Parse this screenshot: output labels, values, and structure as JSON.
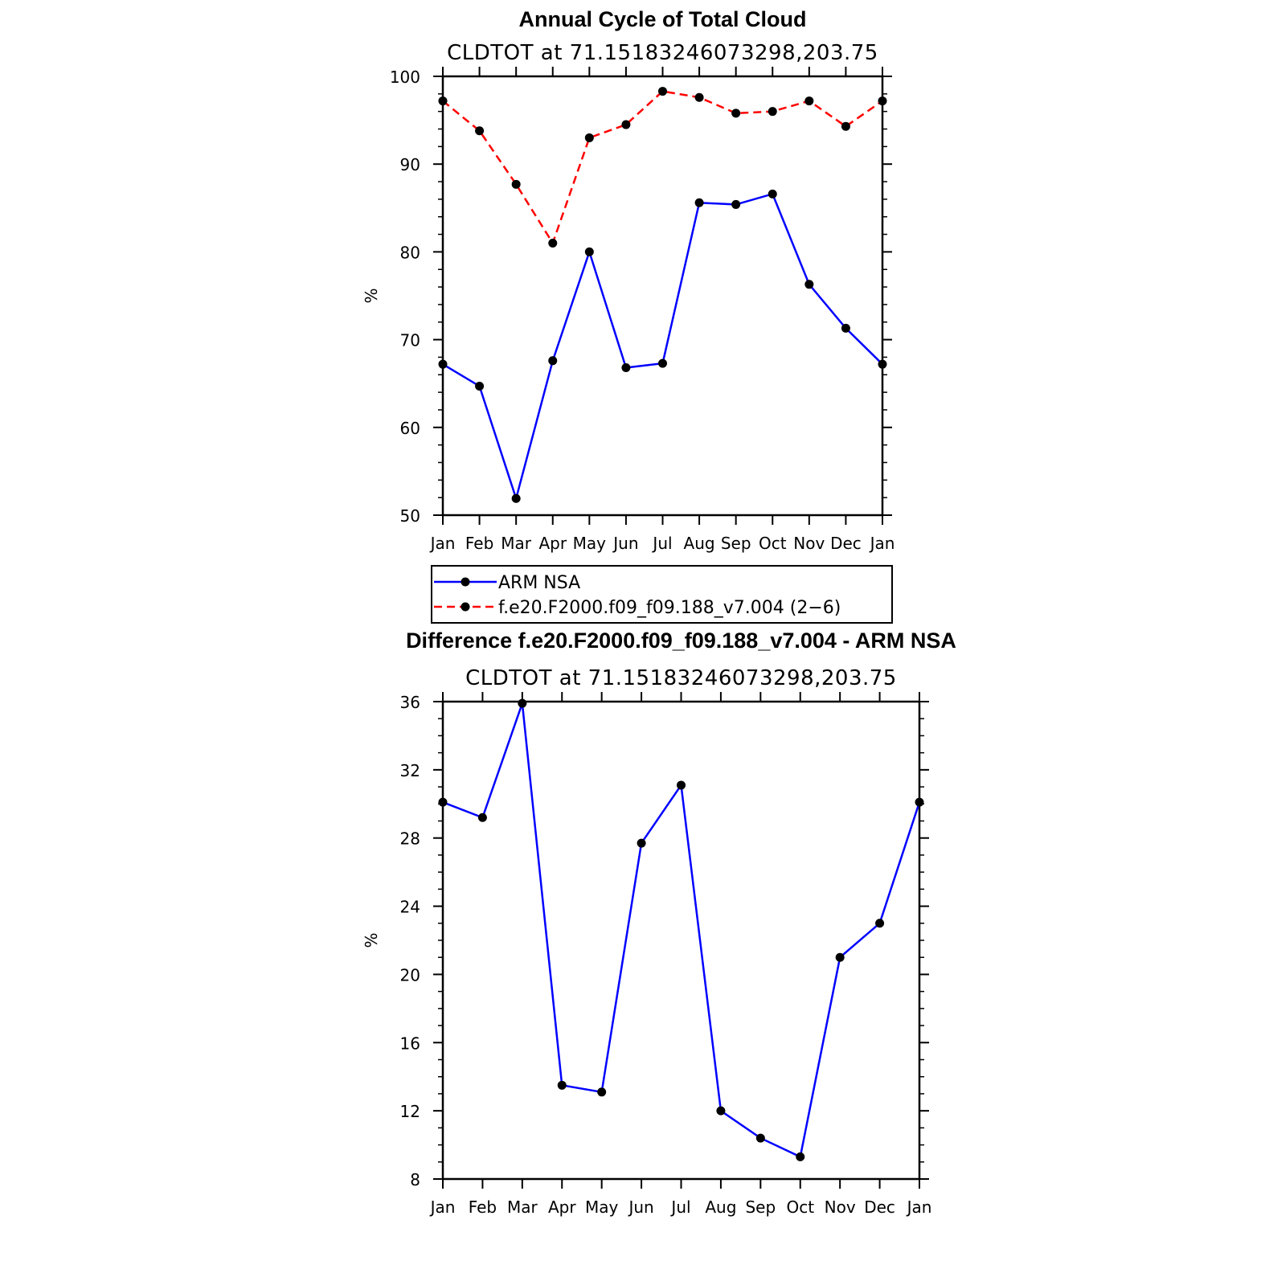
{
  "chart_data": [
    {
      "type": "line",
      "title": "Annual Cycle of Total Cloud",
      "subtitle": "CLDTOT at 71.15183246073298,203.75",
      "ylabel": "%",
      "xlabel": "",
      "ylim": [
        50,
        100
      ],
      "yticks": [
        "50",
        "60",
        "70",
        "80",
        "90",
        "100"
      ],
      "yticks_values": [
        50,
        60,
        70,
        80,
        90,
        100
      ],
      "categories": [
        "Jan",
        "Feb",
        "Mar",
        "Apr",
        "May",
        "Jun",
        "Jul",
        "Aug",
        "Sep",
        "Oct",
        "Nov",
        "Dec",
        "Jan"
      ],
      "series": [
        {
          "name": "ARM NSA",
          "color": "#0000ff",
          "dash": "solid",
          "values": [
            67.2,
            64.7,
            51.9,
            67.6,
            80.0,
            66.8,
            67.3,
            85.6,
            85.4,
            86.6,
            76.3,
            71.3,
            67.2
          ]
        },
        {
          "name": "f.e20.F2000.f09_f09.188_v7.004 (2−6)",
          "color": "#ff0000",
          "dash": "dashed",
          "values": [
            97.2,
            93.8,
            87.7,
            81.0,
            93.0,
            94.5,
            98.3,
            97.6,
            95.8,
            96.0,
            97.2,
            94.3,
            97.2
          ]
        }
      ]
    },
    {
      "type": "line",
      "title": "Difference f.e20.F2000.f09_f09.188_v7.004 - ARM NSA",
      "subtitle": "CLDTOT at 71.15183246073298,203.75",
      "ylabel": "%",
      "xlabel": "",
      "ylim": [
        8,
        36
      ],
      "yticks": [
        "8",
        "12",
        "16",
        "20",
        "24",
        "28",
        "32",
        "36"
      ],
      "yticks_values": [
        8,
        12,
        16,
        20,
        24,
        28,
        32,
        36
      ],
      "categories": [
        "Jan",
        "Feb",
        "Mar",
        "Apr",
        "May",
        "Jun",
        "Jul",
        "Aug",
        "Sep",
        "Oct",
        "Nov",
        "Dec",
        "Jan"
      ],
      "series": [
        {
          "name": "difference",
          "color": "#0000ff",
          "dash": "solid",
          "values": [
            30.1,
            29.2,
            35.9,
            13.5,
            13.1,
            27.7,
            31.1,
            12.0,
            10.4,
            9.3,
            21.0,
            23.0,
            30.1
          ]
        }
      ]
    }
  ]
}
